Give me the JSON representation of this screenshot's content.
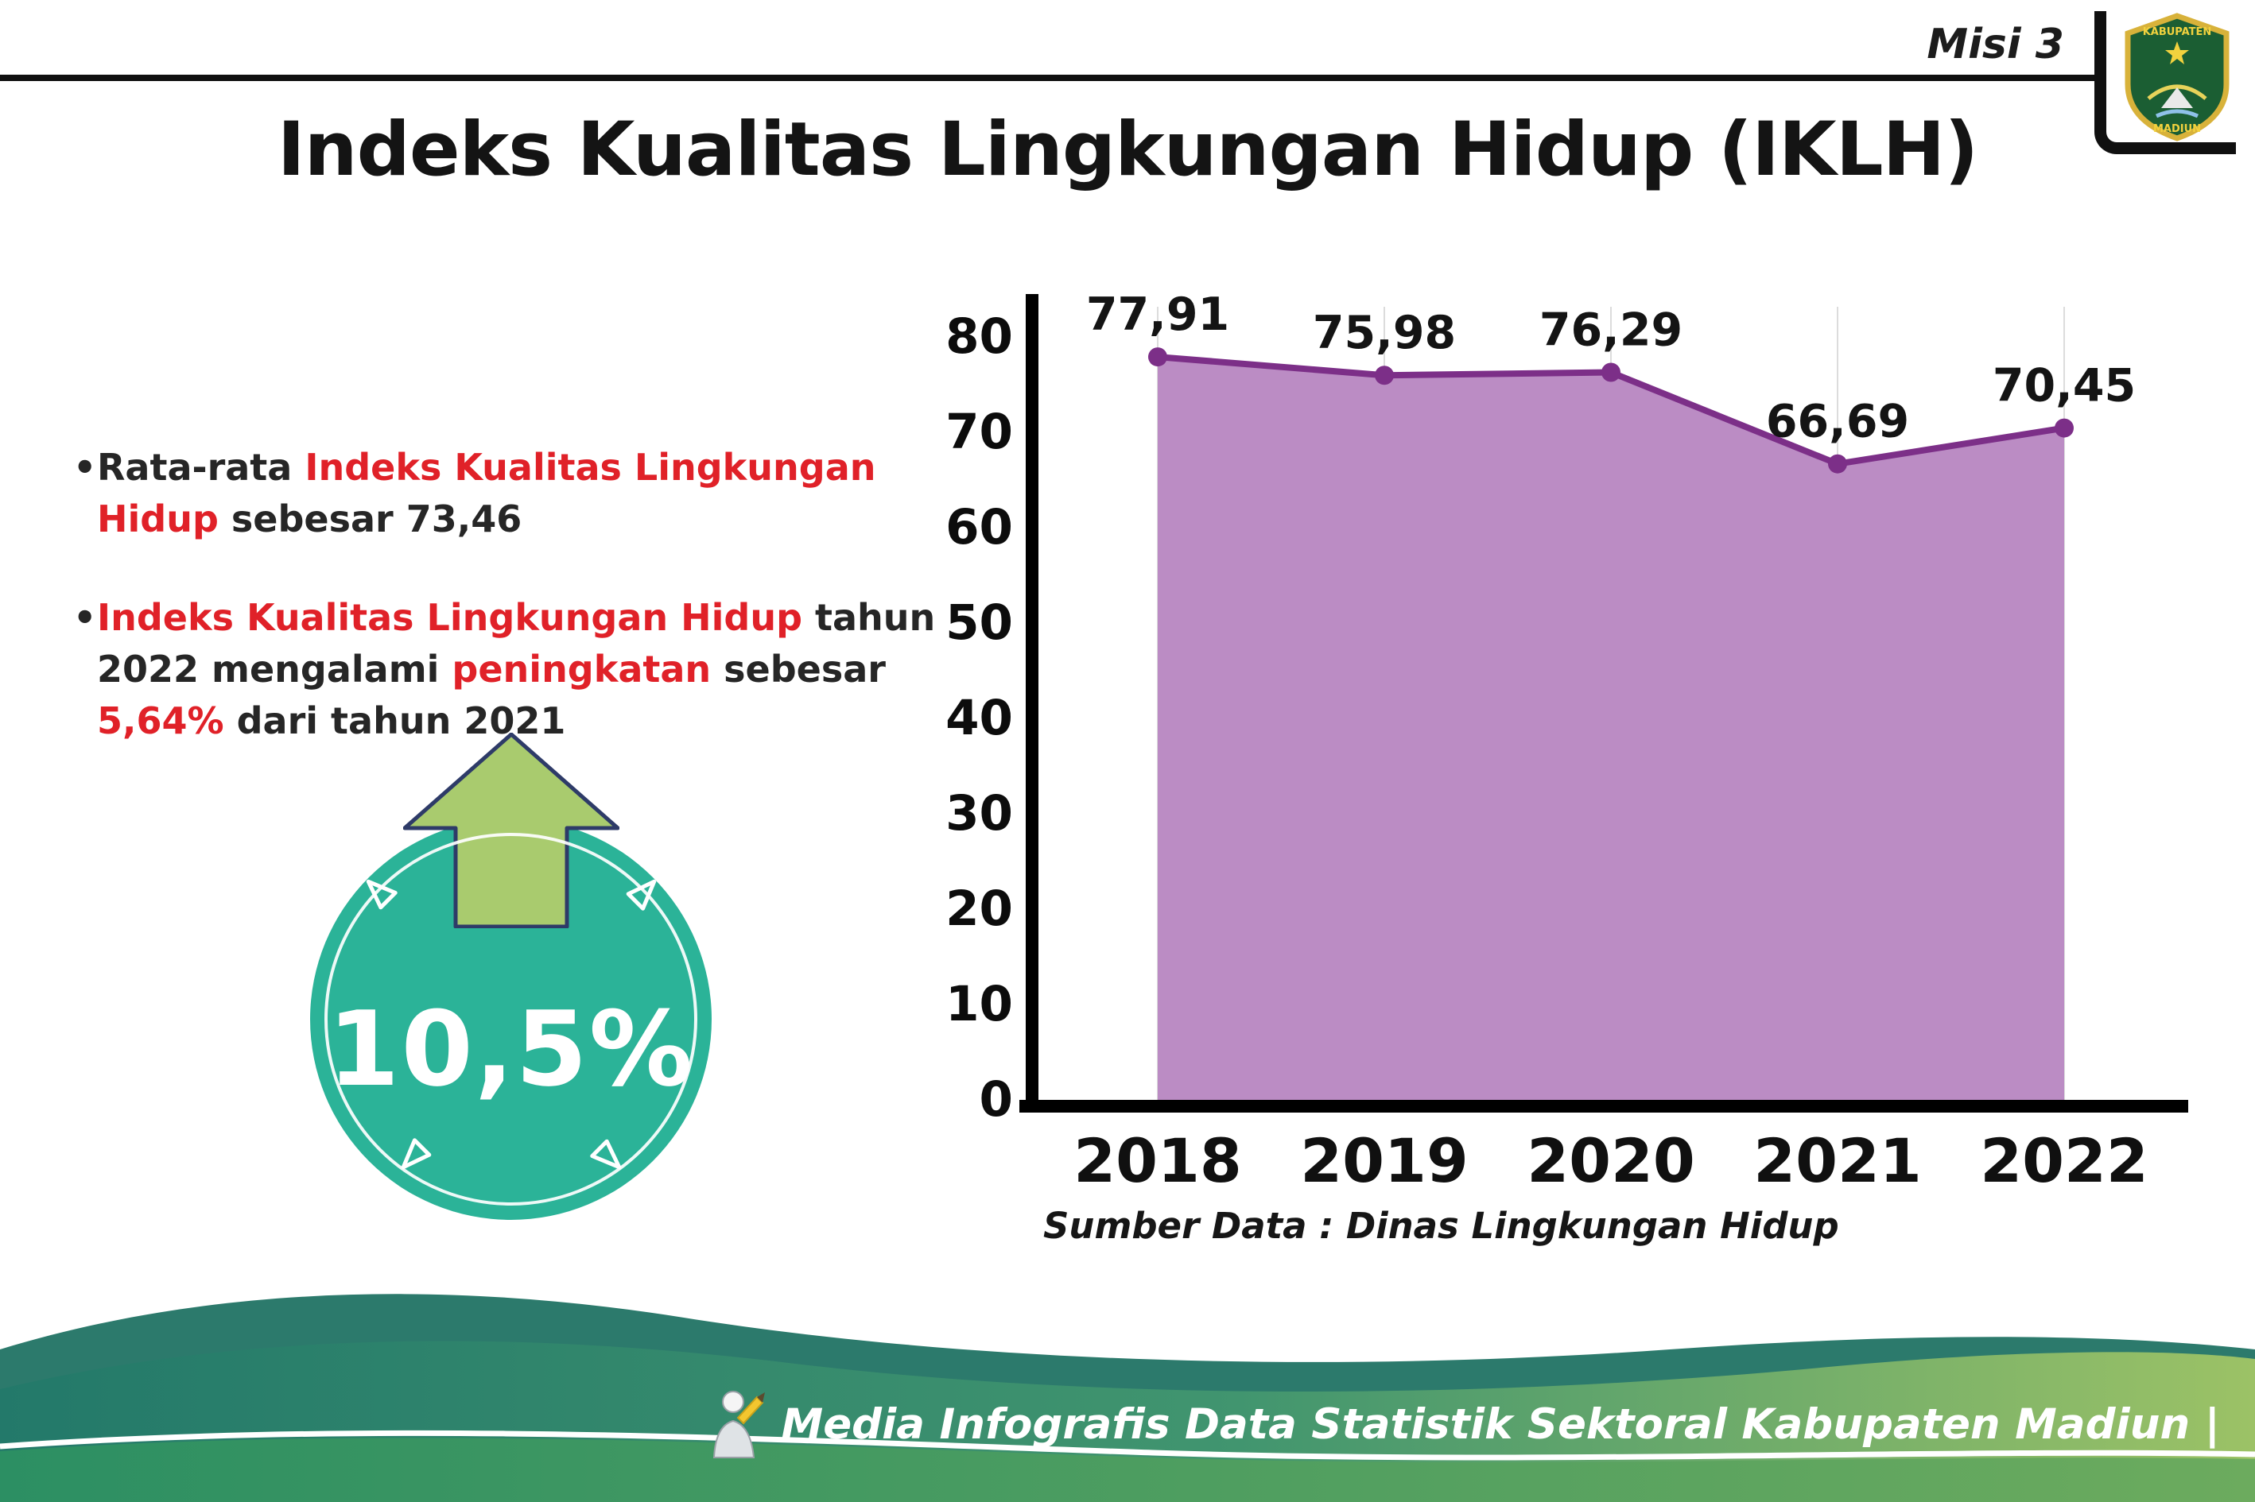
{
  "header": {
    "mission_label": "Misi 3",
    "title": "Indeks Kualitas Lingkungan Hidup (IKLH)",
    "logo": {
      "top_text": "KABUPATEN",
      "bottom_text": "MADIUN"
    }
  },
  "bullets": [
    {
      "segments": [
        {
          "text": "Rata-rata ",
          "emphasis": false
        },
        {
          "text": "Indeks Kualitas Lingkungan Hidup",
          "emphasis": true
        },
        {
          "text": " sebesar 73,46",
          "emphasis": false
        }
      ]
    },
    {
      "segments": [
        {
          "text": "Indeks Kualitas Lingkungan Hidup",
          "emphasis": true
        },
        {
          "text": " tahun 2022 mengalami ",
          "emphasis": false
        },
        {
          "text": "peningkatan",
          "emphasis": true
        },
        {
          "text": " sebesar ",
          "emphasis": false
        },
        {
          "text": "5,64%",
          "emphasis": true
        },
        {
          "text": " dari tahun 2021",
          "emphasis": false
        }
      ]
    }
  ],
  "badge": {
    "value": "10,5%",
    "icon": "up-arrow-icon",
    "circle_color": "#2bb398",
    "arrow_color": "#a9cb6e"
  },
  "chart_data": {
    "type": "area",
    "title": "",
    "categories": [
      "2018",
      "2019",
      "2020",
      "2021",
      "2022"
    ],
    "values": [
      77.91,
      75.98,
      76.29,
      66.69,
      70.45
    ],
    "value_labels": [
      "77,91",
      "75,98",
      "76,29",
      "66,69",
      "70,45"
    ],
    "ylim": [
      0,
      80
    ],
    "ytick_step": 10,
    "grid": "vertical-light",
    "legend": "none",
    "fill_color": "#bb8cc4",
    "line_color": "#7c2f88",
    "axis_color": "#000000",
    "source_note": "Sumber Data : Dinas Lingkungan Hidup"
  },
  "footer": {
    "caption": "Media Infografis Data Statistik Sektoral Kabupaten Madiun |"
  },
  "colors": {
    "accent_red": "#e02128",
    "footer_teal_dark": "#2c7a6c",
    "footer_green_mid": "#41956f",
    "footer_green_light": "#9cc266"
  }
}
